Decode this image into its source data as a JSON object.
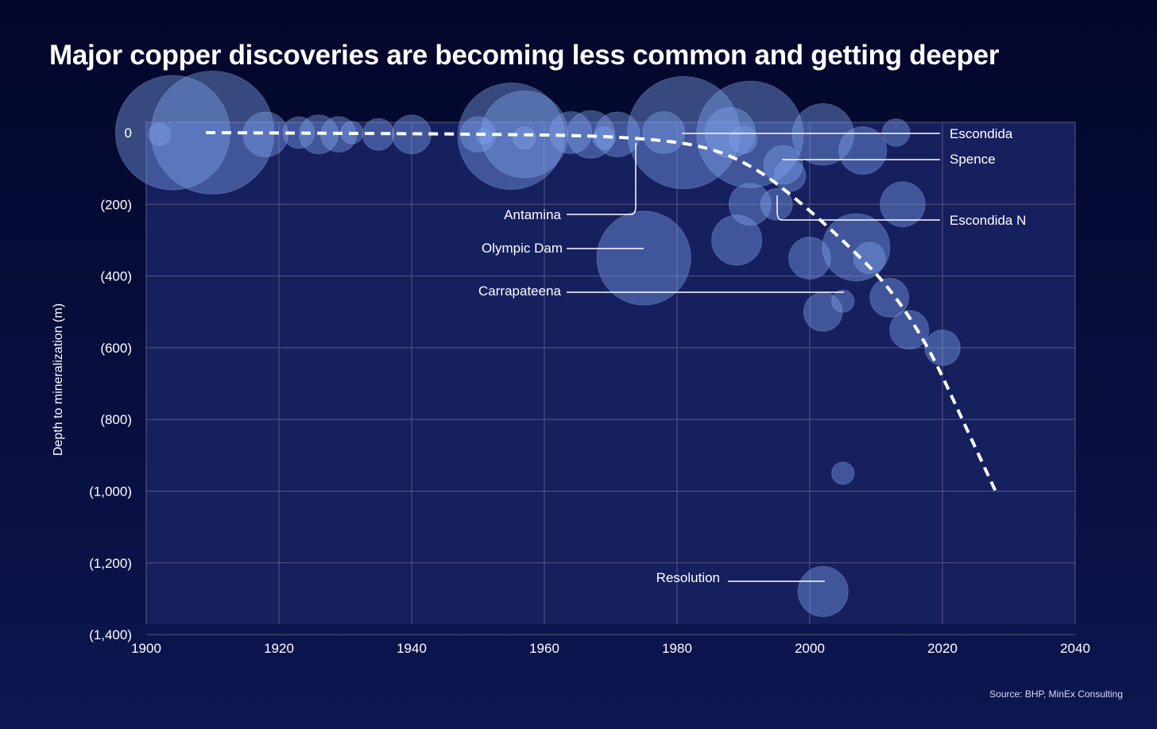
{
  "title": "Major copper discoveries are becoming less common and getting deeper",
  "source": "Source: BHP, MinEx Consulting",
  "chart_data": {
    "type": "scatter",
    "subtype": "bubble",
    "title": "Major copper discoveries are becoming less common and getting deeper",
    "xlabel": "",
    "ylabel": "Depth to mineralization (m)",
    "xlim": [
      1900,
      2040
    ],
    "ylim": [
      -1400,
      0
    ],
    "x_ticks": [
      "1900",
      "1920",
      "1940",
      "1960",
      "1980",
      "2000",
      "2020",
      "2040"
    ],
    "y_ticks": [
      {
        "value": 0,
        "label": "0"
      },
      {
        "value": -200,
        "label": "(200)"
      },
      {
        "value": -400,
        "label": "(400)"
      },
      {
        "value": -600,
        "label": "(600)"
      },
      {
        "value": -800,
        "label": "(800)"
      },
      {
        "value": -1000,
        "label": "(1,000)"
      },
      {
        "value": -1200,
        "label": "(1,200)"
      },
      {
        "value": -1400,
        "label": "(1,400)"
      }
    ],
    "grid": true,
    "bubbles": [
      {
        "year": 1902,
        "depth": -5,
        "size": 2
      },
      {
        "year": 1904,
        "depth": 0,
        "size": 52
      },
      {
        "year": 1910,
        "depth": 0,
        "size": 60
      },
      {
        "year": 1918,
        "depth": -5,
        "size": 8
      },
      {
        "year": 1923,
        "depth": 0,
        "size": 4
      },
      {
        "year": 1926,
        "depth": -5,
        "size": 6
      },
      {
        "year": 1929,
        "depth": -5,
        "size": 5
      },
      {
        "year": 1931,
        "depth": 0,
        "size": 2
      },
      {
        "year": 1935,
        "depth": -5,
        "size": 4
      },
      {
        "year": 1940,
        "depth": -5,
        "size": 6
      },
      {
        "year": 1950,
        "depth": -5,
        "size": 5
      },
      {
        "year": 1951,
        "depth": -10,
        "size": 1
      },
      {
        "year": 1955,
        "depth": -10,
        "size": 45
      },
      {
        "year": 1957,
        "depth": -5,
        "size": 30
      },
      {
        "year": 1957,
        "depth": -15,
        "size": 2
      },
      {
        "year": 1964,
        "depth": 0,
        "size": 7
      },
      {
        "year": 1967,
        "depth": -5,
        "size": 9
      },
      {
        "year": 1969,
        "depth": -15,
        "size": 2
      },
      {
        "year": 1971,
        "depth": -5,
        "size": 8
      },
      {
        "year": 1975,
        "depth": -350,
        "size": 35
      },
      {
        "year": 1978,
        "depth": 0,
        "size": 7
      },
      {
        "year": 1981,
        "depth": 0,
        "size": 50
      },
      {
        "year": 1988,
        "depth": 0,
        "size": 10
      },
      {
        "year": 1990,
        "depth": -20,
        "size": 3
      },
      {
        "year": 1991,
        "depth": -5,
        "size": 45
      },
      {
        "year": 1991,
        "depth": -200,
        "size": 7
      },
      {
        "year": 1989,
        "depth": -300,
        "size": 10
      },
      {
        "year": 1995,
        "depth": -200,
        "size": 4
      },
      {
        "year": 1996,
        "depth": -90,
        "size": 6
      },
      {
        "year": 1997,
        "depth": -120,
        "size": 4
      },
      {
        "year": 2000,
        "depth": -350,
        "size": 7
      },
      {
        "year": 2002,
        "depth": -5,
        "size": 15
      },
      {
        "year": 2002,
        "depth": -500,
        "size": 6
      },
      {
        "year": 2005,
        "depth": -470,
        "size": 2
      },
      {
        "year": 2005,
        "depth": -950,
        "size": 2
      },
      {
        "year": 2007,
        "depth": -320,
        "size": 18
      },
      {
        "year": 2008,
        "depth": -50,
        "size": 9
      },
      {
        "year": 2009,
        "depth": -350,
        "size": 4
      },
      {
        "year": 2012,
        "depth": -460,
        "size": 6
      },
      {
        "year": 2013,
        "depth": 0,
        "size": 3
      },
      {
        "year": 2014,
        "depth": -200,
        "size": 8
      },
      {
        "year": 2015,
        "depth": -550,
        "size": 6
      },
      {
        "year": 2020,
        "depth": -600,
        "size": 5
      },
      {
        "year": 2002,
        "depth": -1280,
        "size": 10
      }
    ],
    "trend": {
      "style": "dashed",
      "points": [
        [
          1909,
          0
        ],
        [
          1960,
          -5
        ],
        [
          1975,
          -15
        ],
        [
          1985,
          -40
        ],
        [
          1992,
          -100
        ],
        [
          1998,
          -185
        ],
        [
          2005,
          -300
        ],
        [
          2012,
          -430
        ],
        [
          2018,
          -600
        ],
        [
          2023,
          -800
        ],
        [
          2028,
          -1000
        ]
      ]
    },
    "annotations": [
      {
        "label": "Escondida",
        "year": 1981,
        "depth": 0,
        "side": "right"
      },
      {
        "label": "Spence",
        "year": 1996,
        "depth": -75,
        "side": "right"
      },
      {
        "label": "Escondida N",
        "year": 1995,
        "depth": -180,
        "side": "right"
      },
      {
        "label": "Antamina",
        "year": 1974,
        "depth": -25,
        "side": "left"
      },
      {
        "label": "Olympic Dam",
        "year": 1975,
        "depth": -350,
        "side": "left"
      },
      {
        "label": "Carrapateena",
        "year": 2005,
        "depth": -470,
        "side": "left"
      },
      {
        "label": "Resolution",
        "year": 2002,
        "depth": -1280,
        "side": "left"
      }
    ],
    "colors": {
      "plot_background": "#16205f",
      "bubble_fill": "#7fa3ec",
      "gridline": "#55597a",
      "trend_line": "#ffffff"
    }
  }
}
